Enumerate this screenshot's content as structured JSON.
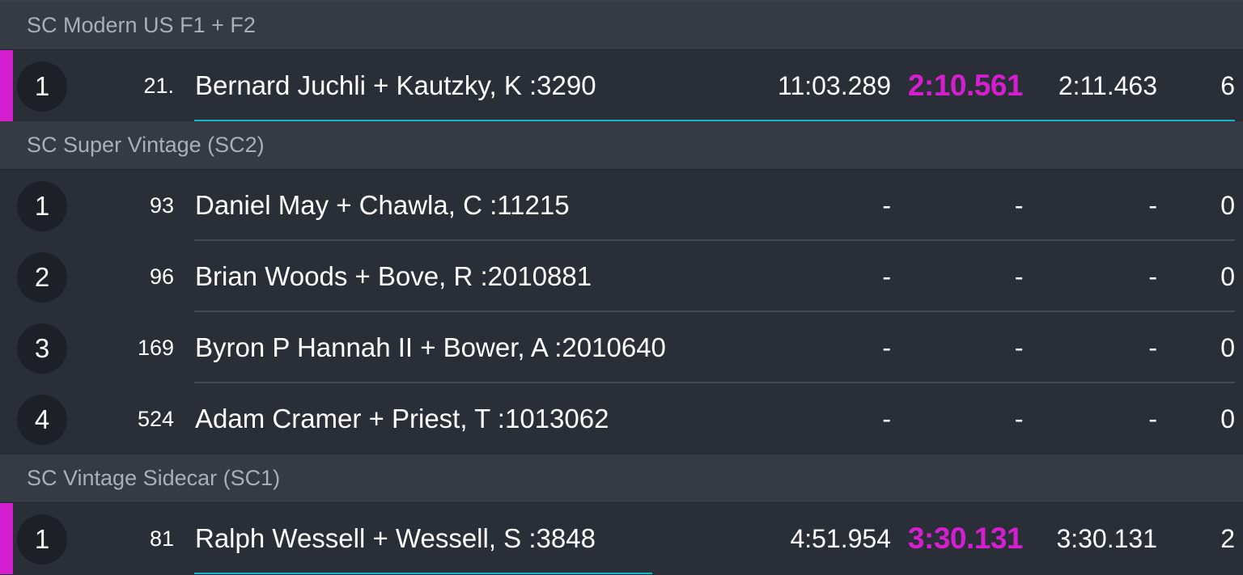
{
  "colors": {
    "accent": "#d41ecf",
    "progress": "#18b4cc",
    "background": "#2a2e36",
    "header_background": "#353a43"
  },
  "sections": [
    {
      "title": "SC Modern US F1 + F2",
      "rows": [
        {
          "position": "1",
          "number": "21.",
          "name": "Bernard Juchli + Kautzky, K :3290",
          "total": "11:03.289",
          "best": "2:10.561",
          "last": "2:11.463",
          "laps": "6",
          "highlight": true,
          "progress": 1.0
        }
      ]
    },
    {
      "title": "SC Super Vintage (SC2)",
      "rows": [
        {
          "position": "1",
          "number": "93",
          "name": "Daniel May + Chawla, C :11215",
          "total": "-",
          "best": "-",
          "last": "-",
          "laps": "0",
          "highlight": false
        },
        {
          "position": "2",
          "number": "96",
          "name": "Brian Woods + Bove, R :2010881",
          "total": "-",
          "best": "-",
          "last": "-",
          "laps": "0",
          "highlight": false
        },
        {
          "position": "3",
          "number": "169",
          "name": "Byron P Hannah II + Bower, A :2010640",
          "total": "-",
          "best": "-",
          "last": "-",
          "laps": "0",
          "highlight": false
        },
        {
          "position": "4",
          "number": "524",
          "name": "Adam Cramer + Priest, T :1013062",
          "total": "-",
          "best": "-",
          "last": "-",
          "laps": "0",
          "highlight": false
        }
      ]
    },
    {
      "title": "SC Vintage Sidecar (SC1)",
      "rows": [
        {
          "position": "1",
          "number": "81",
          "name": "Ralph Wessell + Wessell, S :3848",
          "total": "4:51.954",
          "best": "3:30.131",
          "last": "3:30.131",
          "laps": "2",
          "highlight": true,
          "progress": 0.44
        }
      ]
    }
  ]
}
